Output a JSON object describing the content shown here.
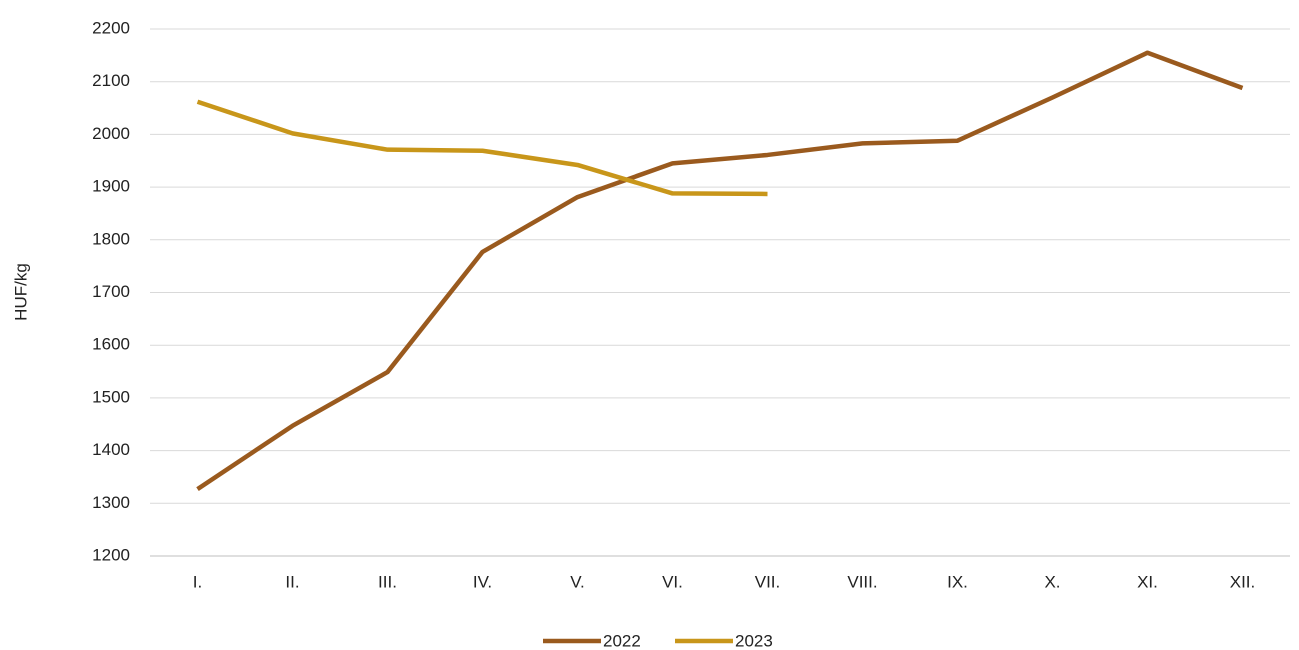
{
  "chart_data": {
    "type": "line",
    "y_label": "HUF/kg",
    "categories": [
      "I.",
      "II.",
      "III.",
      "IV.",
      "V.",
      "VI.",
      "VII.",
      "VIII.",
      "IX.",
      "X.",
      "XI.",
      "XII."
    ],
    "series": [
      {
        "name": "2022",
        "color": "#9a5a1e",
        "values": [
          1327,
          1447,
          1549,
          1777,
          1881,
          1945,
          1961,
          1983,
          1988,
          2070,
          2155,
          2088
        ]
      },
      {
        "name": "2023",
        "color": "#c8961a",
        "values": [
          2062,
          2002,
          1971,
          1969,
          1942,
          1888,
          1887,
          null,
          null,
          null,
          null,
          null
        ]
      }
    ],
    "ylim": [
      1200,
      2200
    ],
    "yticks": [
      1200,
      1300,
      1400,
      1500,
      1600,
      1700,
      1800,
      1900,
      2000,
      2100,
      2200
    ],
    "grid": true,
    "legend": "bottom"
  }
}
